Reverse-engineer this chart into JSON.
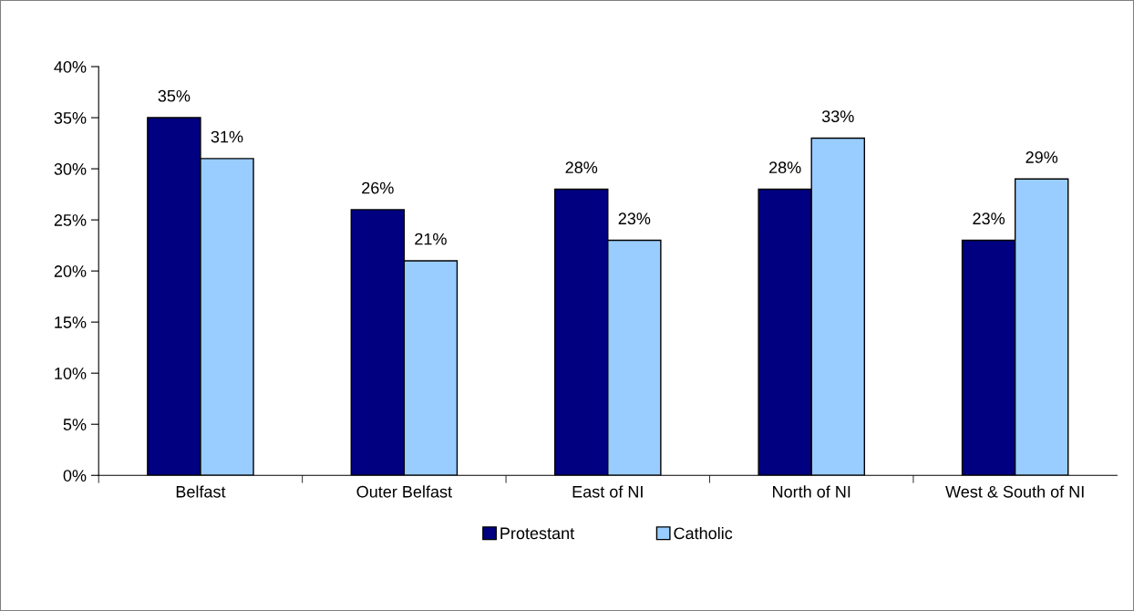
{
  "chart_data": {
    "type": "bar",
    "categories": [
      "Belfast",
      "Outer Belfast",
      "East of NI",
      "North of NI",
      "West & South of NI"
    ],
    "series": [
      {
        "name": "Protestant",
        "color": "#000080",
        "values": [
          35,
          26,
          28,
          28,
          23
        ],
        "value_labels": [
          "35%",
          "26%",
          "28%",
          "28%",
          "23%"
        ]
      },
      {
        "name": "Catholic",
        "color": "#99ccff",
        "values": [
          31,
          21,
          23,
          33,
          29
        ],
        "value_labels": [
          "31%",
          "21%",
          "23%",
          "33%",
          "29%"
        ]
      }
    ],
    "ylim": [
      0,
      40
    ],
    "yticks": [
      {
        "value": 0,
        "label": "0%"
      },
      {
        "value": 5,
        "label": "5%"
      },
      {
        "value": 10,
        "label": "10%"
      },
      {
        "value": 15,
        "label": "15%"
      },
      {
        "value": 20,
        "label": "20%"
      },
      {
        "value": 25,
        "label": "25%"
      },
      {
        "value": 30,
        "label": "30%"
      },
      {
        "value": 35,
        "label": "35%"
      },
      {
        "value": 40,
        "label": "40%"
      }
    ],
    "grid": false,
    "legend": "bottom"
  }
}
